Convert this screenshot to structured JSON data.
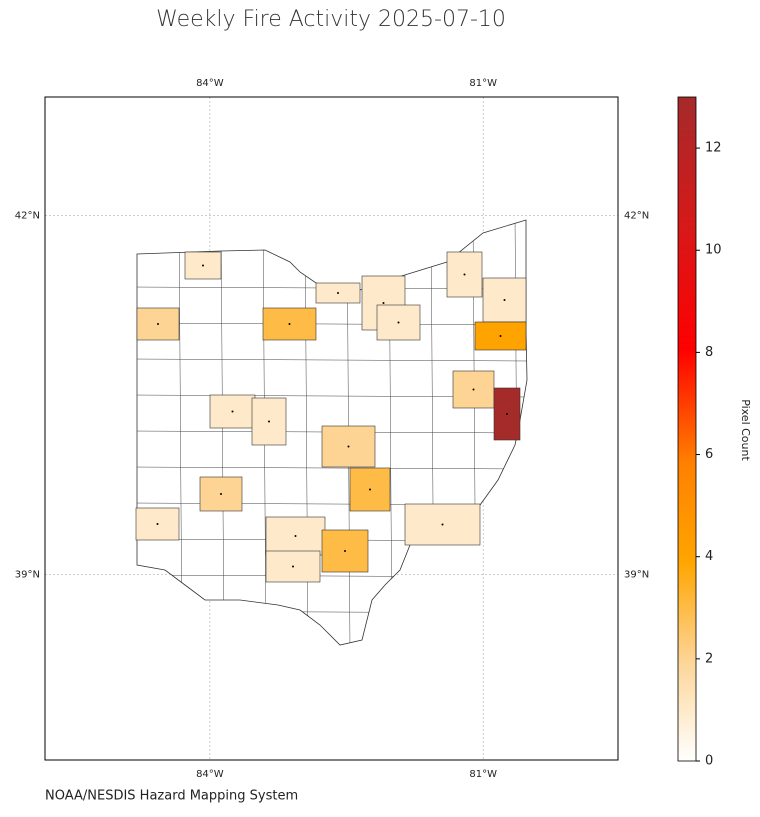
{
  "chart_data": {
    "type": "choropleth",
    "title": "Weekly Fire Activity 2025-07-10",
    "source": "NOAA/NESDIS Hazard Mapping System",
    "colorbar_label": "Pixel Count",
    "xlim": [
      -85.81,
      -79.52
    ],
    "ylim": [
      37.45,
      42.99
    ],
    "xticks": [
      {
        "value": -84,
        "label": "84°W"
      },
      {
        "value": -81,
        "label": "81°W"
      }
    ],
    "yticks": [
      {
        "value": 42,
        "label": "42°N"
      },
      {
        "value": 39,
        "label": "39°N"
      }
    ],
    "clim": [
      0,
      13
    ],
    "cticks": [
      0,
      2,
      4,
      6,
      8,
      10,
      12
    ],
    "colormap": [
      {
        "stop": 0,
        "color": "#ffffff"
      },
      {
        "stop": 0.15,
        "color": "#fdd597"
      },
      {
        "stop": 0.3,
        "color": "#ffa500"
      },
      {
        "stop": 0.45,
        "color": "#ff8000"
      },
      {
        "stop": 0.62,
        "color": "#ff0000"
      },
      {
        "stop": 0.8,
        "color": "#d81818"
      },
      {
        "stop": 1,
        "color": "#a52a2a"
      }
    ],
    "grid": true,
    "values": [
      1,
      1,
      1,
      1,
      1,
      1,
      2,
      3,
      4,
      2,
      13,
      1,
      1,
      2,
      3,
      2,
      1,
      1,
      3,
      1,
      1
    ]
  }
}
